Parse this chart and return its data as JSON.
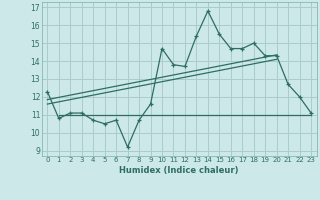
{
  "xlabel": "Humidex (Indice chaleur)",
  "bg_color": "#cce8e8",
  "grid_color": "#aacccc",
  "line_color": "#2e6e62",
  "xlim": [
    -0.5,
    23.5
  ],
  "ylim": [
    8.7,
    17.3
  ],
  "xticks": [
    0,
    1,
    2,
    3,
    4,
    5,
    6,
    7,
    8,
    9,
    10,
    11,
    12,
    13,
    14,
    15,
    16,
    17,
    18,
    19,
    20,
    21,
    22,
    23
  ],
  "yticks": [
    9,
    10,
    11,
    12,
    13,
    14,
    15,
    16,
    17
  ],
  "curve_x": [
    0,
    1,
    2,
    3,
    4,
    5,
    6,
    7,
    8,
    9,
    10,
    11,
    12,
    13,
    14,
    15,
    16,
    17,
    18,
    19,
    20,
    21,
    22,
    23
  ],
  "curve_y": [
    12.3,
    10.8,
    11.1,
    11.1,
    10.7,
    10.5,
    10.7,
    9.2,
    10.7,
    11.6,
    14.7,
    13.8,
    13.7,
    15.4,
    16.8,
    15.5,
    14.7,
    14.7,
    15.0,
    14.3,
    14.3,
    12.7,
    12.0,
    11.1
  ],
  "trend1_x": [
    0,
    20
  ],
  "trend1_y": [
    11.85,
    14.35
  ],
  "trend2_x": [
    0,
    20
  ],
  "trend2_y": [
    11.6,
    14.1
  ],
  "hline_y": 11.0,
  "hline_x_start": 1,
  "hline_x_end": 23
}
